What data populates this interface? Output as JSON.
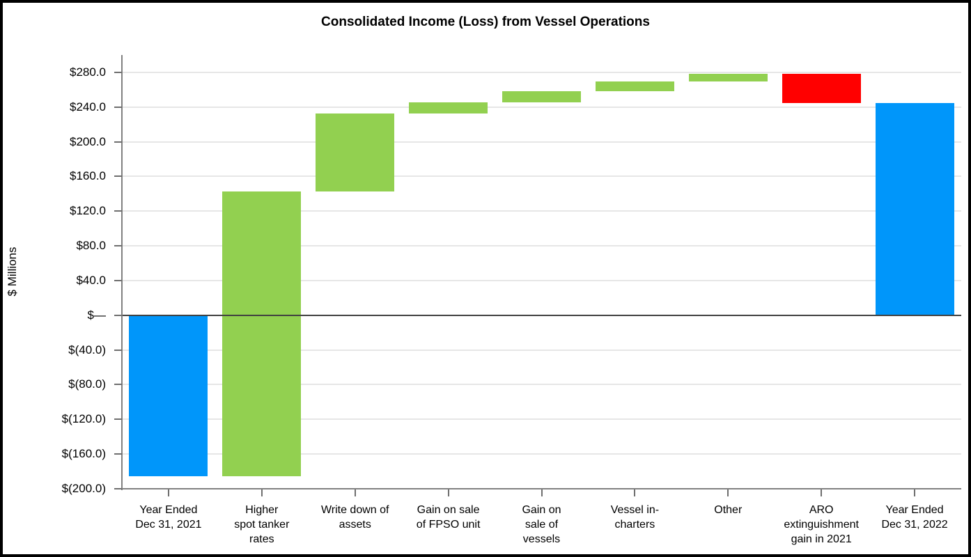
{
  "title": "Consolidated Income (Loss) from Vessel Operations",
  "chart_data": {
    "type": "bar",
    "subtype": "waterfall",
    "title": "Consolidated Income (Loss) from Vessel Operations",
    "ylabel": "$ Millions",
    "xlabel": "",
    "ylim": [
      -200,
      300
    ],
    "ytick_step": 40,
    "grid": "horizontal-only",
    "legend": "none",
    "units": "$ Millions",
    "yticks": [
      {
        "value": 280,
        "label": "$280.0"
      },
      {
        "value": 240,
        "label": "$240.0"
      },
      {
        "value": 200,
        "label": "$200.0"
      },
      {
        "value": 160,
        "label": "$160.0"
      },
      {
        "value": 120,
        "label": "$120.0"
      },
      {
        "value": 80,
        "label": "$80.0"
      },
      {
        "value": 40,
        "label": "$40.0"
      },
      {
        "value": 0,
        "label": "$—"
      },
      {
        "value": -40,
        "label": "$(40.0)"
      },
      {
        "value": -80,
        "label": "$(80.0)"
      },
      {
        "value": -120,
        "label": "$(120.0)"
      },
      {
        "value": -160,
        "label": "$(160.0)"
      },
      {
        "value": -200,
        "label": "$(200.0)"
      }
    ],
    "categories": [
      "Year Ended\nDec 31, 2021",
      "Higher\nspot tanker\nrates",
      "Write down of\nassets",
      "Gain on sale\nof FPSO unit",
      "Gain on\nsale of\nvessels",
      "Vessel in-\ncharters",
      "Other",
      "ARO\nextinguishment\ngain in 2021",
      "Year Ended\nDec 31, 2022"
    ],
    "bars": [
      {
        "category": "Year Ended\nDec 31, 2021",
        "role": "total",
        "start": 0,
        "end": -185.6,
        "value": -185.6,
        "color_key": "blue"
      },
      {
        "category": "Higher\nspot tanker\nrates",
        "role": "increase",
        "start": -185.6,
        "end": 142.3,
        "value": 327.9,
        "color_key": "green"
      },
      {
        "category": "Write down of\nassets",
        "role": "increase",
        "start": 142.3,
        "end": 232.7,
        "value": 90.4,
        "color_key": "green"
      },
      {
        "category": "Gain on sale\nof FPSO unit",
        "role": "increase",
        "start": 232.7,
        "end": 245.4,
        "value": 12.7,
        "color_key": "green"
      },
      {
        "category": "Gain on\nsale of\nvessels",
        "role": "increase",
        "start": 245.4,
        "end": 258.2,
        "value": 12.8,
        "color_key": "green"
      },
      {
        "category": "Vessel in-\ncharters",
        "role": "increase",
        "start": 258.2,
        "end": 269.2,
        "value": 11.0,
        "color_key": "green"
      },
      {
        "category": "Other",
        "role": "increase",
        "start": 269.2,
        "end": 278.1,
        "value": 8.9,
        "color_key": "green"
      },
      {
        "category": "ARO\nextinguishment\ngain in 2021",
        "role": "decrease",
        "start": 278.1,
        "end": 244.6,
        "value": -33.5,
        "color_key": "red"
      },
      {
        "category": "Year Ended\nDec 31, 2022",
        "role": "total",
        "start": 0,
        "end": 244.6,
        "value": 244.6,
        "color_key": "blue"
      }
    ],
    "colors": {
      "blue": "#0096FA",
      "green": "#92D050",
      "red": "#FF0000",
      "gridline": "#E6E6E6",
      "axis": "#808080",
      "zero_line": "#404040",
      "text": "#000000",
      "frame": "#000000",
      "background": "#FFFFFF"
    }
  }
}
